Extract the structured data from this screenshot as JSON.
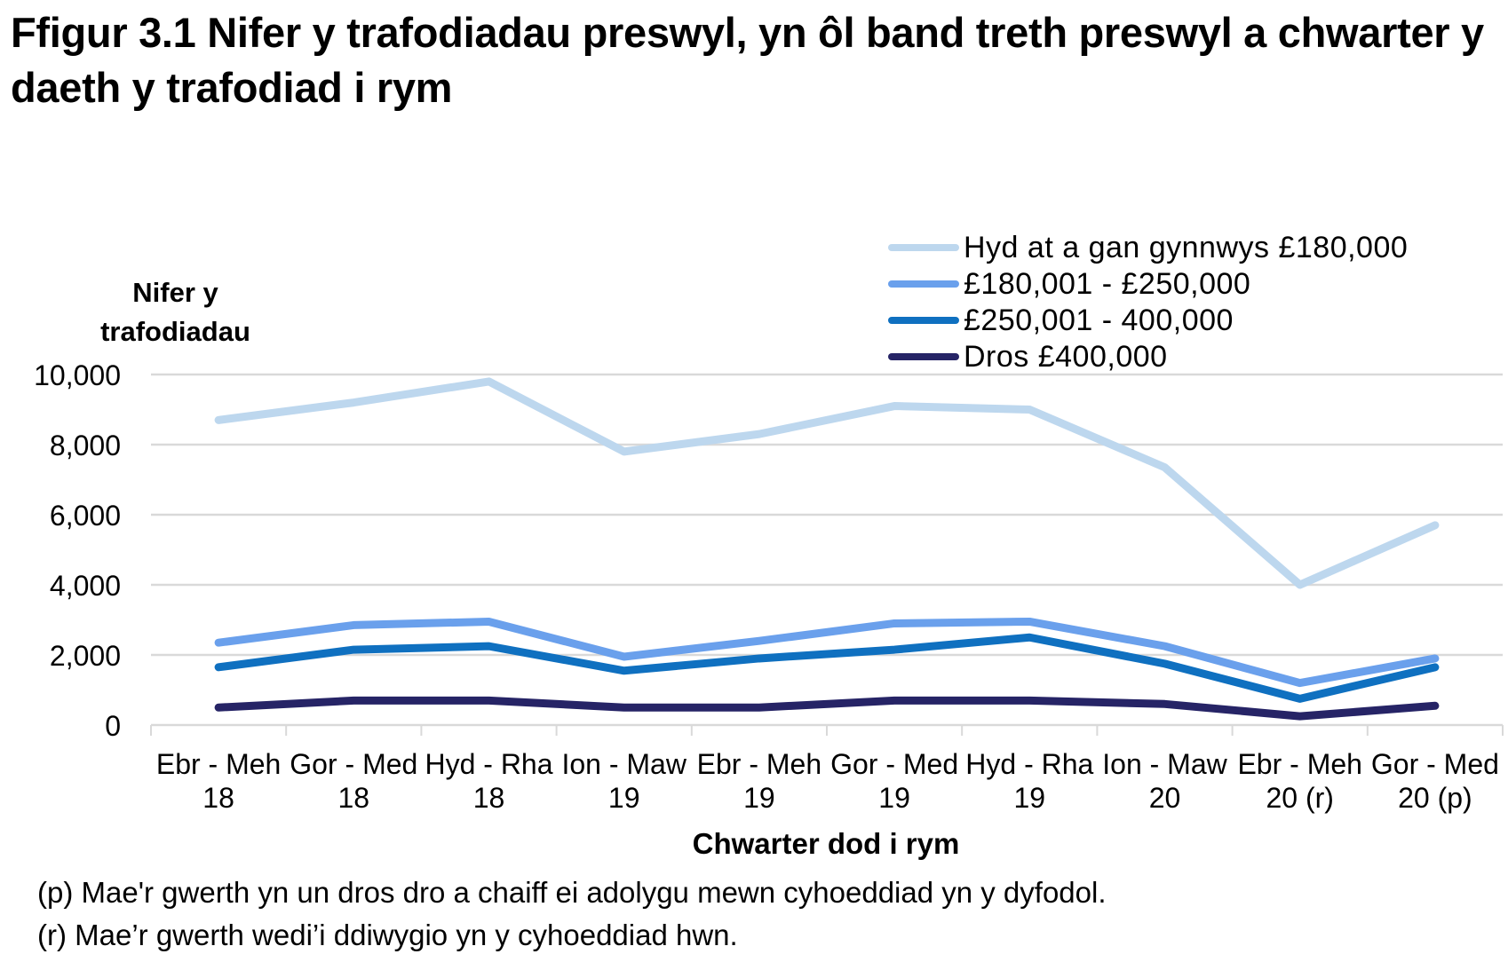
{
  "title": "Ffigur 3.1  Nifer y trafodiadau preswyl, yn ôl band treth preswyl a chwarter y daeth y trafodiad i rym",
  "y_axis_title_line1": "Nifer y",
  "y_axis_title_line2": "trafodiadau",
  "x_axis_title": "Chwarter dod i rym",
  "notes": [
    "(p) Mae'r gwerth yn un dros dro a chaiff ei adolygu mewn cyhoeddiad yn y dyfodol.",
    "(r) Mae’r gwerth wedi’i ddiwygio yn y cyhoeddiad hwn."
  ],
  "legend": [
    {
      "label": "Hyd at a gan gynnwys £180,000",
      "color": "#BDD7EE"
    },
    {
      "label": "£180,001 - £250,000",
      "color": "#6AA0EC"
    },
    {
      "label": "£250,001 - 400,000",
      "color": "#0F70C0"
    },
    {
      "label": "Dros £400,000",
      "color": "#262466"
    }
  ],
  "chart_data": {
    "type": "line",
    "title": "Ffigur 3.1  Nifer y trafodiadau preswyl, yn ôl band treth preswyl a chwarter y daeth y trafodiad i rym",
    "xlabel": "Chwarter dod i rym",
    "ylabel": "Nifer y trafodiadau",
    "ylim": [
      0,
      10000
    ],
    "yticks": [
      0,
      2000,
      4000,
      6000,
      8000,
      10000
    ],
    "ytick_labels": [
      "0",
      "2,000",
      "4,000",
      "6,000",
      "8,000",
      "10,000"
    ],
    "grid": true,
    "legend_position": "top-right",
    "categories": [
      [
        "Ebr - Meh",
        "18"
      ],
      [
        "Gor - Med",
        "18"
      ],
      [
        "Hyd - Rha",
        "18"
      ],
      [
        "Ion - Maw",
        "19"
      ],
      [
        "Ebr - Meh",
        "19"
      ],
      [
        "Gor - Med",
        "19"
      ],
      [
        "Hyd - Rha",
        "19"
      ],
      [
        "Ion - Maw",
        "20"
      ],
      [
        "Ebr - Meh",
        "20 (r)"
      ],
      [
        "Gor - Med",
        "20 (p)"
      ]
    ],
    "series": [
      {
        "name": "Hyd at a gan gynnwys £180,000",
        "color": "#BDD7EE",
        "values": [
          8700,
          9200,
          9800,
          7800,
          8300,
          9100,
          9000,
          7350,
          4000,
          5700
        ]
      },
      {
        "name": "£180,001 - £250,000",
        "color": "#6AA0EC",
        "values": [
          2350,
          2850,
          2950,
          1950,
          2400,
          2900,
          2950,
          2250,
          1200,
          1900
        ]
      },
      {
        "name": "£250,001 - 400,000",
        "color": "#0F70C0",
        "values": [
          1650,
          2150,
          2250,
          1550,
          1900,
          2150,
          2500,
          1750,
          750,
          1650
        ]
      },
      {
        "name": "Dros £400,000",
        "color": "#262466",
        "values": [
          500,
          700,
          700,
          500,
          500,
          700,
          700,
          600,
          250,
          550
        ]
      }
    ]
  }
}
